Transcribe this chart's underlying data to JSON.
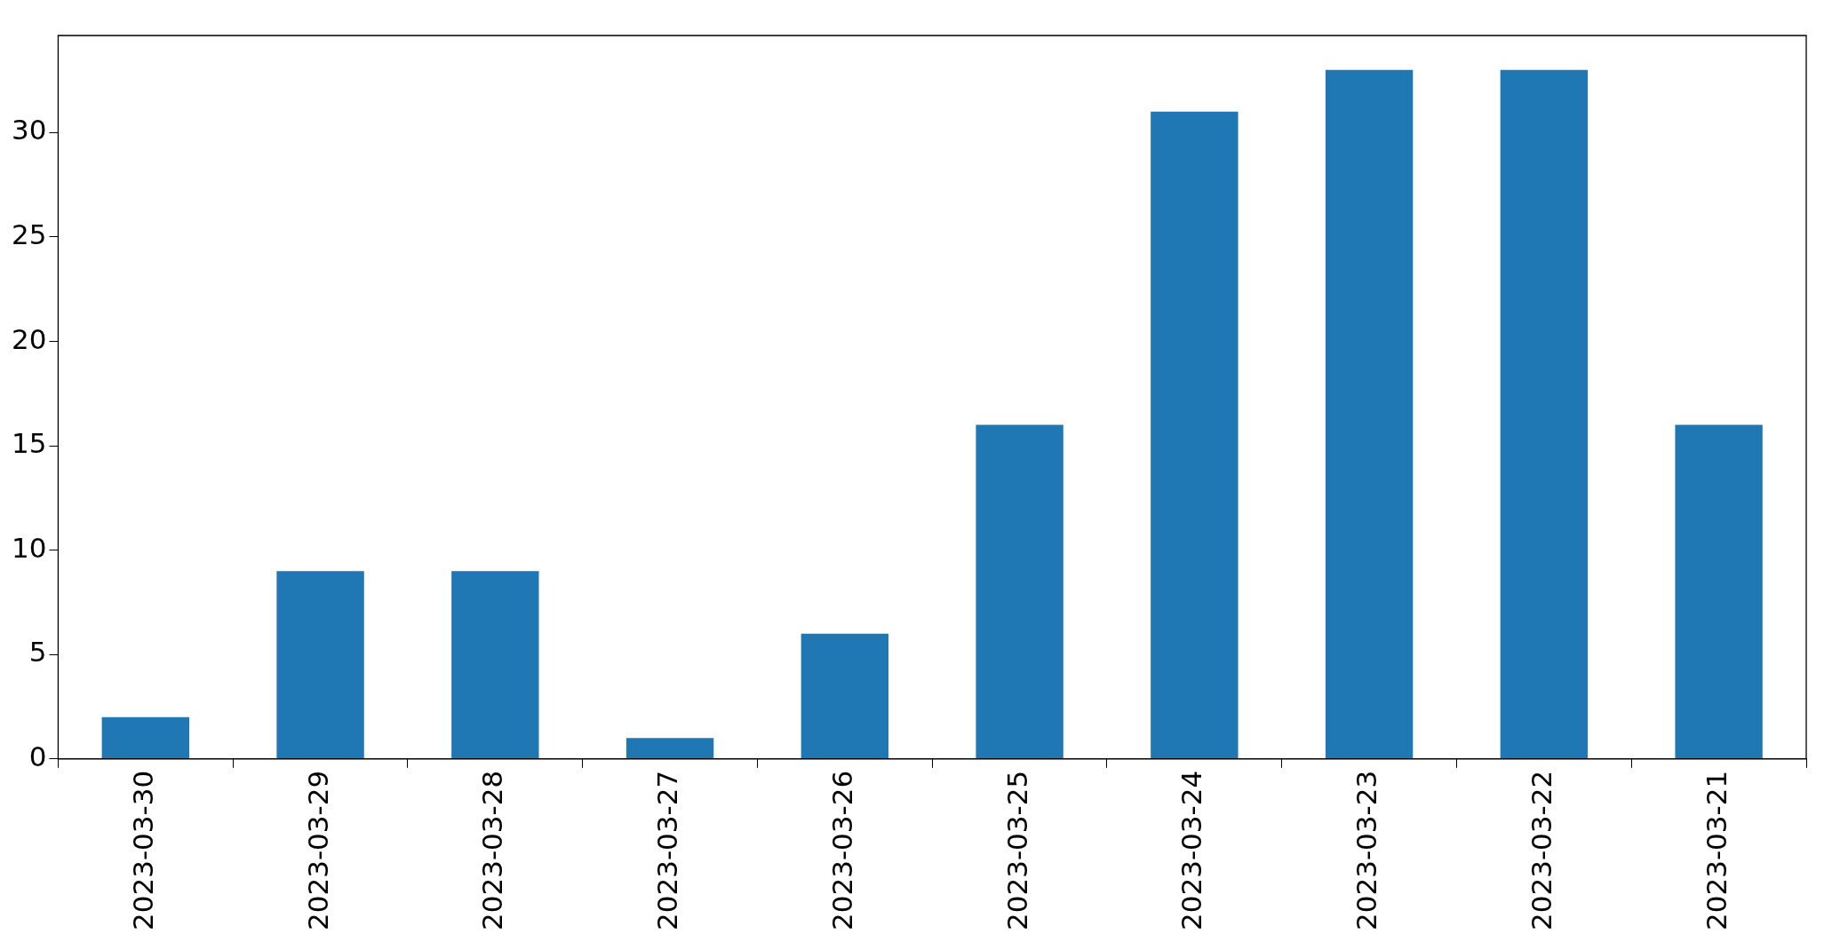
{
  "chart_data": {
    "type": "bar",
    "categories": [
      "2023-03-30",
      "2023-03-29",
      "2023-03-28",
      "2023-03-27",
      "2023-03-26",
      "2023-03-25",
      "2023-03-24",
      "2023-03-23",
      "2023-03-22",
      "2023-03-21"
    ],
    "values": [
      2,
      9,
      9,
      1,
      6,
      16,
      31,
      33,
      33,
      16
    ],
    "color": "#1f77b4",
    "ylim": [
      0,
      34.65
    ],
    "yticks": [
      0,
      5,
      10,
      15,
      20,
      25,
      30
    ],
    "grid": false,
    "legend": false
  }
}
